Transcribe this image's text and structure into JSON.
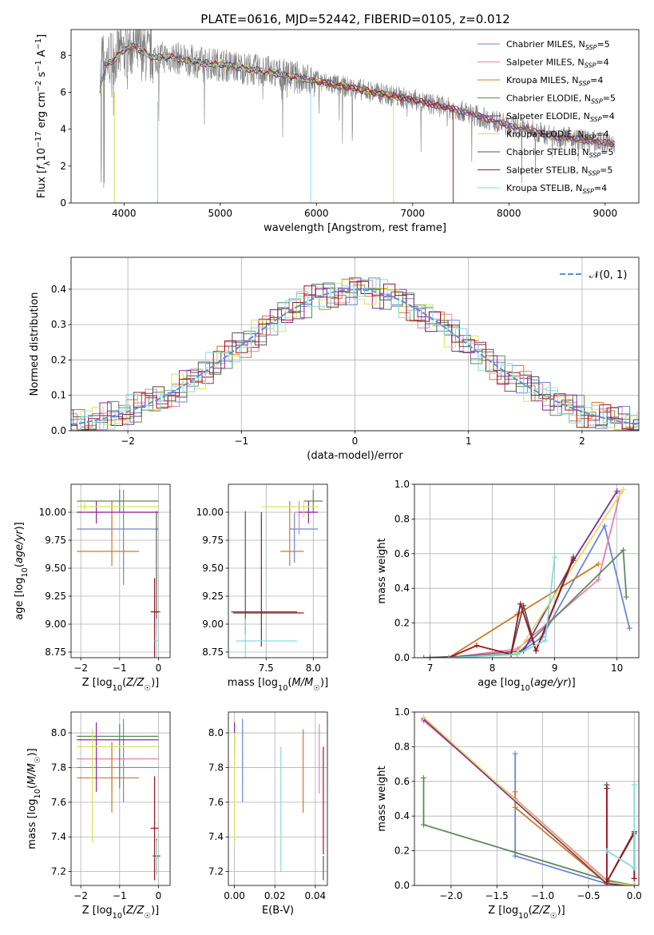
{
  "title": "PLATE=0616, MJD=52442, FIBERID=0105, z=0.012",
  "colors": {
    "Chabrier MILES": "#6a86d8",
    "Salpeter MILES": "#e680b4",
    "Kroupa MILES": "#d27a22",
    "Chabrier ELODIE": "#5c8a5c",
    "Salpeter ELODIE": "#8a2a9a",
    "Kroupa ELODIE": "#d6e25a",
    "Chabrier STELIB": "#555555",
    "Salpeter STELIB": "#a0141e",
    "Kroupa STELIB": "#7fdede",
    "gaussian": "#5b8fd8"
  },
  "legend": [
    {
      "base": "Chabrier MILES, N",
      "sub": "SSP",
      "tail": "=5"
    },
    {
      "base": "Salpeter MILES, N",
      "sub": "SSP",
      "tail": "=4"
    },
    {
      "base": "Kroupa MILES, N",
      "sub": "SSP",
      "tail": "=4"
    },
    {
      "base": "Chabrier ELODIE, N",
      "sub": "SSP",
      "tail": "=5"
    },
    {
      "base": "Salpeter ELODIE, N",
      "sub": "SSP",
      "tail": "=4"
    },
    {
      "base": "Kroupa ELODIE, N",
      "sub": "SSP",
      "tail": "=4"
    },
    {
      "base": "Chabrier STELIB, N",
      "sub": "SSP",
      "tail": "=5"
    },
    {
      "base": "Salpeter STELIB, N",
      "sub": "SSP",
      "tail": "=5"
    },
    {
      "base": "Kroupa STELIB, N",
      "sub": "SSP",
      "tail": "=4"
    }
  ],
  "chart_data": [
    {
      "id": "spectrum",
      "type": "line",
      "title": "PLATE=0616, MJD=52442, FIBERID=0105, z=0.012",
      "xlabel": "wavelength [Angstrom, rest frame]",
      "ylabel": "Flux [f_λ 10^-17 erg cm^-2 s^-1 A^-1]",
      "xlim": [
        3450,
        9350
      ],
      "ylim": [
        0,
        9.4
      ],
      "xticks": [
        4000,
        5000,
        6000,
        7000,
        8000,
        9000
      ],
      "yticks": [
        0,
        2,
        4,
        6,
        8
      ],
      "data_continuum": {
        "x": [
          3750,
          4000,
          4100,
          4300,
          4500,
          4800,
          5000,
          5500,
          6000,
          6500,
          7000,
          7500,
          8000,
          8500,
          9100
        ],
        "y": [
          7.6,
          8.2,
          8.4,
          7.9,
          7.9,
          7.6,
          7.5,
          7.1,
          6.6,
          6.1,
          5.6,
          5.0,
          4.2,
          3.6,
          3.2
        ]
      },
      "model_continuum": {
        "x": [
          3750,
          3800,
          3900,
          4000,
          4100,
          4300,
          4500,
          4800,
          5000,
          5500,
          6000,
          6500,
          7000,
          7500,
          8000,
          8500,
          9100
        ],
        "y": [
          6.0,
          7.4,
          7.8,
          8.3,
          8.5,
          7.9,
          7.9,
          7.6,
          7.5,
          7.1,
          6.6,
          6.1,
          5.6,
          5.0,
          4.2,
          3.6,
          3.2
        ]
      }
    },
    {
      "id": "residuals",
      "type": "line",
      "xlabel": "(data-model)/error",
      "ylabel": "Normed distribution",
      "xlim": [
        -2.5,
        2.5
      ],
      "ylim": [
        0,
        0.49
      ],
      "xticks": [
        -2,
        -1,
        0,
        1,
        2
      ],
      "yticks": [
        0.0,
        0.1,
        0.2,
        0.3,
        0.4
      ],
      "reference": "N(0,1)"
    },
    {
      "id": "age_vs_Z",
      "type": "scatter",
      "xlabel": "Z [log10(Z/Z☉)]",
      "ylabel": "age  [log10(age/yr)]",
      "xlim": [
        -2.25,
        0.3
      ],
      "ylim": [
        8.7,
        10.25
      ],
      "xticks": [
        -2,
        -1,
        0
      ],
      "yticks": [
        8.75,
        9.0,
        9.25,
        9.5,
        9.75,
        10.0
      ],
      "points": [
        {
          "model": "Chabrier MILES",
          "x": -0.9,
          "xerr": [
            1.2,
            0.9
          ],
          "y": 9.85,
          "yerr": [
            0.5,
            0.35
          ]
        },
        {
          "model": "Salpeter MILES",
          "x": -1.2,
          "xerr": [
            0.9,
            1.2
          ],
          "y": 10.0,
          "yerr": [
            0.2,
            0.1
          ]
        },
        {
          "model": "Kroupa MILES",
          "x": -1.2,
          "xerr": [
            0.9,
            0.7
          ],
          "y": 9.65,
          "yerr": [
            0.13,
            0.45
          ]
        },
        {
          "model": "Chabrier ELODIE",
          "x": -1.0,
          "xerr": [
            1.1,
            1.0
          ],
          "y": 10.1,
          "yerr": [
            0.1,
            0.1
          ]
        },
        {
          "model": "Salpeter ELODIE",
          "x": -1.6,
          "xerr": [
            0.5,
            1.6
          ],
          "y": 10.0,
          "yerr": [
            0.1,
            0.1
          ]
        },
        {
          "model": "Kroupa ELODIE",
          "x": -1.9,
          "xerr": [
            0.2,
            1.9
          ],
          "y": 10.05,
          "yerr": [
            0.05,
            0.05
          ]
        },
        {
          "model": "Chabrier STELIB",
          "x": -0.05,
          "xerr": [
            0.1,
            0.1
          ],
          "y": 9.11,
          "yerr": [
            0.2,
            0.9
          ]
        },
        {
          "model": "Salpeter STELIB",
          "x": -0.1,
          "xerr": [
            0.1,
            0.1
          ],
          "y": 9.11,
          "yerr": [
            0.9,
            0.3
          ]
        },
        {
          "model": "Kroupa STELIB",
          "x": -0.05,
          "xerr": [
            0.05,
            0.05
          ],
          "y": 8.85,
          "yerr": [
            1.2,
            0.2
          ]
        }
      ]
    },
    {
      "id": "age_vs_mass",
      "type": "scatter",
      "xlabel": "mass [log10(M/M☉)]",
      "ylabel": "",
      "xlim": [
        7.1,
        8.15
      ],
      "ylim": [
        8.7,
        10.25
      ],
      "xticks": [
        7.5,
        8.0
      ],
      "yticks": [
        8.75,
        9.0,
        9.25,
        9.5,
        9.75,
        10.0
      ],
      "points": [
        {
          "model": "Chabrier MILES",
          "x": 7.8,
          "xerr": [
            0.05,
            0.25
          ],
          "y": 9.85,
          "yerr": [
            0.3,
            0.15
          ]
        },
        {
          "model": "Salpeter MILES",
          "x": 7.85,
          "xerr": [
            0.05,
            0.2
          ],
          "y": 10.0,
          "yerr": [
            0.2,
            0.1
          ]
        },
        {
          "model": "Kroupa MILES",
          "x": 7.75,
          "xerr": [
            0.1,
            0.15
          ],
          "y": 9.65,
          "yerr": [
            0.13,
            0.45
          ]
        },
        {
          "model": "Chabrier ELODIE",
          "x": 8.0,
          "xerr": [
            0.1,
            0.1
          ],
          "y": 10.1,
          "yerr": [
            0.1,
            0.1
          ]
        },
        {
          "model": "Salpeter ELODIE",
          "x": 7.95,
          "xerr": [
            0.1,
            0.1
          ],
          "y": 10.0,
          "yerr": [
            0.1,
            0.1
          ]
        },
        {
          "model": "Kroupa ELODIE",
          "x": 7.9,
          "xerr": [
            0.45,
            0.15
          ],
          "y": 10.05,
          "yerr": [
            0.1,
            0.05
          ]
        },
        {
          "model": "Chabrier STELIB",
          "x": 7.28,
          "xerr": [
            0.15,
            0.55
          ],
          "y": 9.11,
          "yerr": [
            0.2,
            0.9
          ]
        },
        {
          "model": "Salpeter STELIB",
          "x": 7.45,
          "xerr": [
            0.3,
            0.45
          ],
          "y": 9.1,
          "yerr": [
            0.3,
            0.9
          ]
        },
        {
          "model": "Kroupa STELIB",
          "x": 7.28,
          "xerr": [
            0.1,
            0.55
          ],
          "y": 8.85,
          "yerr": [
            1.2,
            0.2
          ]
        }
      ]
    },
    {
      "id": "mw_vs_age",
      "type": "line",
      "xlabel": "age  [log10(age/yr)]",
      "ylabel": "mass weight",
      "xlim": [
        6.75,
        10.35
      ],
      "ylim": [
        0,
        1
      ],
      "xticks": [
        7,
        8,
        9,
        10
      ],
      "yticks": [
        0.0,
        0.2,
        0.4,
        0.6,
        0.8,
        1.0
      ],
      "series": [
        {
          "name": "Chabrier MILES",
          "x": [
            7.3,
            8.4,
            8.8,
            9.8,
            10.2
          ],
          "y": [
            0.0,
            0.02,
            0.12,
            0.76,
            0.17
          ]
        },
        {
          "name": "Salpeter MILES",
          "x": [
            7.3,
            8.4,
            9.7,
            10.05
          ],
          "y": [
            0.0,
            0.05,
            0.45,
            0.95
          ]
        },
        {
          "name": "Kroupa MILES",
          "x": [
            7.3,
            8.4,
            9.7
          ],
          "y": [
            0.0,
            0.25,
            0.54
          ]
        },
        {
          "name": "Chabrier ELODIE",
          "x": [
            6.9,
            8.4,
            10.1,
            10.15
          ],
          "y": [
            0.0,
            0.02,
            0.62,
            0.35
          ]
        },
        {
          "name": "Salpeter ELODIE",
          "x": [
            7.3,
            8.5,
            9.3,
            10.0
          ],
          "y": [
            0.0,
            0.04,
            0.56,
            0.96
          ]
        },
        {
          "name": "Kroupa ELODIE",
          "x": [
            7.3,
            8.4,
            10.1
          ],
          "y": [
            0.0,
            0.03,
            0.97
          ]
        },
        {
          "name": "Chabrier STELIB",
          "x": [
            7.0,
            8.3,
            8.5,
            8.7,
            9.3
          ],
          "y": [
            0.0,
            0.02,
            0.3,
            0.04,
            0.58
          ]
        },
        {
          "name": "Salpeter STELIB",
          "x": [
            7.3,
            7.75,
            8.3,
            8.45,
            8.7,
            9.3
          ],
          "y": [
            0.0,
            0.07,
            0.02,
            0.31,
            0.04,
            0.57
          ]
        },
        {
          "name": "Kroupa STELIB",
          "x": [
            7.3,
            8.4,
            8.85,
            9.0
          ],
          "y": [
            0.0,
            0.02,
            0.1,
            0.58
          ]
        }
      ]
    },
    {
      "id": "mass_vs_Z",
      "type": "scatter",
      "xlabel": "Z [log10(Z/Z☉)]",
      "ylabel": "mass [log10(M/M☉)]",
      "xlim": [
        -2.25,
        0.3
      ],
      "ylim": [
        7.12,
        8.12
      ],
      "xticks": [
        -2,
        -1,
        0
      ],
      "yticks": [
        7.2,
        7.4,
        7.6,
        7.8,
        8.0
      ],
      "points": [
        {
          "model": "Chabrier MILES",
          "x": -0.9,
          "xerr": [
            1.2,
            0.9
          ],
          "y": 7.8,
          "yerr": [
            0.2,
            0.28
          ]
        },
        {
          "model": "Salpeter MILES",
          "x": -1.2,
          "xerr": [
            0.9,
            1.2
          ],
          "y": 7.85,
          "yerr": [
            0.2,
            0.1
          ]
        },
        {
          "model": "Kroupa MILES",
          "x": -1.2,
          "xerr": [
            0.9,
            0.7
          ],
          "y": 7.74,
          "yerr": [
            0.2,
            0.2
          ]
        },
        {
          "model": "Chabrier ELODIE",
          "x": -1.0,
          "xerr": [
            1.1,
            1.0
          ],
          "y": 7.98,
          "yerr": [
            0.3,
            0.07
          ]
        },
        {
          "model": "Salpeter ELODIE",
          "x": -1.6,
          "xerr": [
            0.5,
            1.6
          ],
          "y": 7.96,
          "yerr": [
            0.3,
            0.1
          ]
        },
        {
          "model": "Kroupa ELODIE",
          "x": -1.7,
          "xerr": [
            0.4,
            1.7
          ],
          "y": 7.92,
          "yerr": [
            0.55,
            0.1
          ]
        },
        {
          "model": "Chabrier STELIB",
          "x": -0.05,
          "xerr": [
            0.1,
            0.1
          ],
          "y": 7.29,
          "yerr": [
            0.1,
            0.1
          ]
        },
        {
          "model": "Salpeter STELIB",
          "x": -0.1,
          "xerr": [
            0.1,
            0.1
          ],
          "y": 7.45,
          "yerr": [
            0.3,
            0.3
          ]
        },
        {
          "model": "Kroupa STELIB",
          "x": -0.05,
          "xerr": [
            0.05,
            0.05
          ],
          "y": 7.28,
          "yerr": [
            0.1,
            0.1
          ]
        }
      ]
    },
    {
      "id": "mass_vs_EBV",
      "type": "scatter",
      "xlabel": "E(B-V)",
      "ylabel": "",
      "xlim": [
        -0.003,
        0.046
      ],
      "ylim": [
        7.12,
        8.12
      ],
      "xticks": [
        0.0,
        0.02,
        0.04
      ],
      "yticks": [
        7.2,
        7.4,
        7.6,
        7.8,
        8.0
      ],
      "points": [
        {
          "model": "Chabrier MILES",
          "x": 0.004,
          "xerr": [
            0,
            0
          ],
          "y": 7.8,
          "yerr": [
            0.2,
            0.28
          ]
        },
        {
          "model": "Salpeter MILES",
          "x": 0.042,
          "xerr": [
            0,
            0
          ],
          "y": 7.85,
          "yerr": [
            0.2,
            0.2
          ]
        },
        {
          "model": "Kroupa MILES",
          "x": 0.034,
          "xerr": [
            0,
            0
          ],
          "y": 7.78,
          "yerr": [
            0.24,
            0.24
          ]
        },
        {
          "model": "Chabrier ELODIE",
          "x": 0.0,
          "xerr": [
            0,
            0
          ],
          "y": 7.98,
          "yerr": [
            0.07,
            0.07
          ]
        },
        {
          "model": "Salpeter ELODIE",
          "x": 0.0,
          "xerr": [
            0,
            0
          ],
          "y": 7.96,
          "yerr": [
            0.1,
            0.1
          ]
        },
        {
          "model": "Kroupa ELODIE",
          "x": 0.0,
          "xerr": [
            0,
            0
          ],
          "y": 7.7,
          "yerr": [
            0.33,
            0.3
          ]
        },
        {
          "model": "Chabrier STELIB",
          "x": 0.044,
          "xerr": [
            0,
            0
          ],
          "y": 7.22,
          "yerr": [
            0.07,
            0.07
          ]
        },
        {
          "model": "Salpeter STELIB",
          "x": 0.044,
          "xerr": [
            0,
            0
          ],
          "y": 7.6,
          "yerr": [
            0.3,
            0.32
          ]
        },
        {
          "model": "Kroupa STELIB",
          "x": 0.023,
          "xerr": [
            0,
            0
          ],
          "y": 7.56,
          "yerr": [
            0.36,
            0.36
          ]
        }
      ]
    },
    {
      "id": "mw_vs_Z",
      "type": "line",
      "xlabel": "Z [log10(Z/Z☉)]",
      "ylabel": "mass weight",
      "xlim": [
        -2.4,
        0.05
      ],
      "ylim": [
        0,
        1
      ],
      "xticks": [
        -2.0,
        -1.5,
        -1.0,
        -0.5,
        0.0
      ],
      "yticks": [
        0.0,
        0.2,
        0.4,
        0.6,
        0.8,
        1.0
      ],
      "series": [
        {
          "name": "Chabrier MILES",
          "x": [
            -1.3,
            -1.3,
            -0.3,
            0.0
          ],
          "y": [
            0.76,
            0.17,
            0.01,
            0.0
          ]
        },
        {
          "name": "Salpeter MILES",
          "x": [
            -2.3,
            -1.3,
            -0.3,
            0.0
          ],
          "y": [
            0.95,
            0.5,
            0.03,
            0.0
          ]
        },
        {
          "name": "Kroupa MILES",
          "x": [
            -1.3,
            -1.3,
            -0.3,
            0.0
          ],
          "y": [
            0.54,
            0.45,
            0.01,
            0.0
          ]
        },
        {
          "name": "Chabrier ELODIE",
          "x": [
            -2.3,
            -2.3,
            -0.3,
            0.0
          ],
          "y": [
            0.62,
            0.35,
            0.03,
            0.0
          ]
        },
        {
          "name": "Salpeter ELODIE",
          "x": [
            -2.3,
            -0.3,
            0.0
          ],
          "y": [
            0.96,
            0.01,
            0.0
          ]
        },
        {
          "name": "Kroupa ELODIE",
          "x": [
            -2.3,
            -0.3,
            0.0
          ],
          "y": [
            0.97,
            0.02,
            0.0
          ]
        },
        {
          "name": "Chabrier STELIB",
          "x": [
            -0.3,
            -0.3,
            0.0,
            0.0
          ],
          "y": [
            0.58,
            0.02,
            0.3,
            0.04
          ]
        },
        {
          "name": "Salpeter STELIB",
          "x": [
            -0.3,
            -0.3,
            0.0,
            0.0
          ],
          "y": [
            0.56,
            0.02,
            0.31,
            0.04
          ]
        },
        {
          "name": "Kroupa STELIB",
          "x": [
            -0.3,
            0.0,
            0.0
          ],
          "y": [
            0.2,
            0.1,
            0.58
          ]
        }
      ]
    }
  ]
}
